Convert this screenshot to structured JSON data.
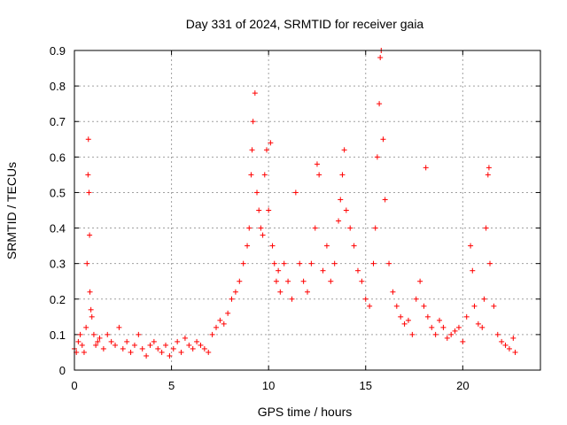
{
  "chart_data": {
    "type": "scatter",
    "title": "Day 331 of 2024, SRMTID for receiver gaia",
    "xlabel": "GPS time / hours",
    "ylabel": "SRMTID / TECUs",
    "xlim": [
      0,
      24
    ],
    "ylim": [
      0,
      0.9
    ],
    "xticks": [
      0,
      5,
      10,
      15,
      20
    ],
    "yticks": [
      0,
      0.1,
      0.2,
      0.3,
      0.4,
      0.5,
      0.6,
      0.7,
      0.8,
      0.9
    ],
    "grid": true,
    "marker": "plus",
    "color": "#ff0000",
    "series": [
      {
        "name": "SRMTID",
        "x": [
          0.0,
          0.1,
          0.2,
          0.3,
          0.4,
          0.5,
          0.6,
          0.65,
          0.7,
          0.72,
          0.75,
          0.78,
          0.8,
          0.85,
          0.9,
          1.0,
          1.1,
          1.2,
          1.3,
          1.5,
          1.7,
          1.9,
          2.1,
          2.3,
          2.5,
          2.7,
          2.9,
          3.1,
          3.3,
          3.5,
          3.7,
          3.9,
          4.1,
          4.3,
          4.5,
          4.7,
          4.9,
          5.1,
          5.3,
          5.5,
          5.7,
          5.9,
          6.1,
          6.3,
          6.5,
          6.7,
          6.9,
          7.1,
          7.3,
          7.5,
          7.7,
          7.9,
          8.1,
          8.3,
          8.5,
          8.7,
          8.9,
          9.0,
          9.1,
          9.15,
          9.2,
          9.3,
          9.4,
          9.5,
          9.6,
          9.7,
          9.8,
          9.9,
          10.0,
          10.1,
          10.2,
          10.3,
          10.4,
          10.5,
          10.6,
          10.8,
          11.0,
          11.2,
          11.4,
          11.6,
          11.8,
          12.0,
          12.2,
          12.4,
          12.5,
          12.6,
          12.8,
          13.0,
          13.2,
          13.4,
          13.6,
          13.7,
          13.8,
          13.9,
          14.0,
          14.2,
          14.4,
          14.6,
          14.8,
          15.0,
          15.2,
          15.4,
          15.5,
          15.6,
          15.7,
          15.75,
          15.8,
          15.9,
          16.0,
          16.2,
          16.4,
          16.6,
          16.8,
          17.0,
          17.2,
          17.4,
          17.6,
          17.8,
          18.0,
          18.1,
          18.2,
          18.4,
          18.6,
          18.8,
          19.0,
          19.2,
          19.4,
          19.6,
          19.8,
          20.0,
          20.2,
          20.4,
          20.5,
          20.6,
          20.8,
          21.0,
          21.1,
          21.2,
          21.3,
          21.35,
          21.4,
          21.6,
          21.8,
          22.0,
          22.2,
          22.4,
          22.6,
          22.7
        ],
        "y": [
          0.06,
          0.05,
          0.08,
          0.1,
          0.07,
          0.05,
          0.12,
          0.3,
          0.55,
          0.65,
          0.5,
          0.38,
          0.22,
          0.17,
          0.15,
          0.1,
          0.07,
          0.08,
          0.09,
          0.06,
          0.1,
          0.08,
          0.07,
          0.12,
          0.06,
          0.08,
          0.05,
          0.07,
          0.1,
          0.06,
          0.04,
          0.07,
          0.08,
          0.06,
          0.05,
          0.07,
          0.04,
          0.06,
          0.08,
          0.05,
          0.09,
          0.07,
          0.06,
          0.08,
          0.07,
          0.06,
          0.05,
          0.1,
          0.12,
          0.14,
          0.13,
          0.16,
          0.2,
          0.22,
          0.25,
          0.3,
          0.35,
          0.4,
          0.55,
          0.62,
          0.7,
          0.78,
          0.5,
          0.45,
          0.4,
          0.38,
          0.55,
          0.62,
          0.45,
          0.64,
          0.35,
          0.3,
          0.25,
          0.28,
          0.22,
          0.3,
          0.25,
          0.2,
          0.5,
          0.3,
          0.25,
          0.22,
          0.3,
          0.4,
          0.58,
          0.55,
          0.28,
          0.35,
          0.25,
          0.3,
          0.42,
          0.48,
          0.55,
          0.62,
          0.45,
          0.4,
          0.35,
          0.28,
          0.25,
          0.2,
          0.18,
          0.3,
          0.4,
          0.6,
          0.75,
          0.88,
          0.9,
          0.65,
          0.48,
          0.3,
          0.22,
          0.18,
          0.15,
          0.13,
          0.14,
          0.1,
          0.2,
          0.25,
          0.18,
          0.57,
          0.15,
          0.12,
          0.1,
          0.14,
          0.12,
          0.09,
          0.1,
          0.11,
          0.12,
          0.08,
          0.15,
          0.35,
          0.28,
          0.18,
          0.13,
          0.12,
          0.2,
          0.4,
          0.55,
          0.57,
          0.3,
          0.18,
          0.1,
          0.08,
          0.07,
          0.06,
          0.09,
          0.05
        ]
      }
    ]
  }
}
